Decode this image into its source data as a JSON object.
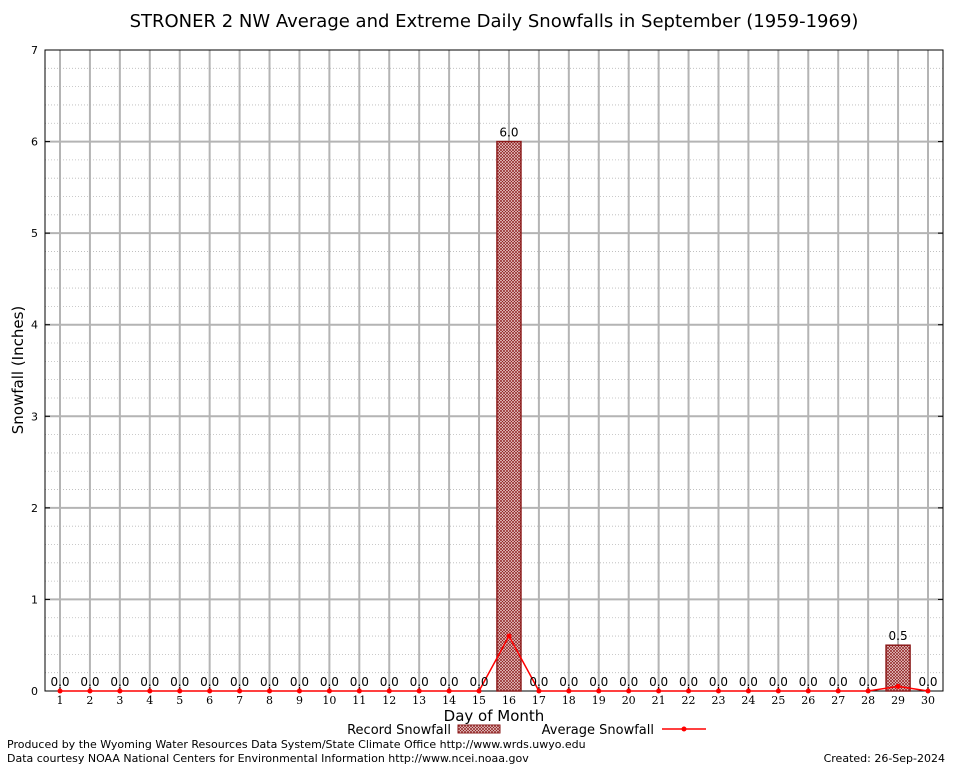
{
  "chart_data": {
    "type": "bar",
    "title": "STRONER 2 NW Average and Extreme Daily Snowfalls in September (1959-1969)",
    "xlabel": "Day of Month",
    "ylabel": "Snowfall (Inches)",
    "ylim": [
      0,
      7
    ],
    "yticks": [
      "0",
      "1",
      "2",
      "3",
      "4",
      "5",
      "6",
      "7"
    ],
    "categories": [
      "1",
      "2",
      "3",
      "4",
      "5",
      "6",
      "7",
      "8",
      "9",
      "10",
      "11",
      "12",
      "13",
      "14",
      "15",
      "16",
      "17",
      "18",
      "19",
      "20",
      "21",
      "22",
      "23",
      "24",
      "25",
      "26",
      "27",
      "28",
      "29",
      "30"
    ],
    "series": [
      {
        "name": "Record Snowfall",
        "kind": "bar",
        "color": "#b22222",
        "values": [
          0,
          0,
          0,
          0,
          0,
          0,
          0,
          0,
          0,
          0,
          0,
          0,
          0,
          0,
          0,
          6.0,
          0,
          0,
          0,
          0,
          0,
          0,
          0,
          0,
          0,
          0,
          0,
          0,
          0.5,
          0
        ],
        "labels": [
          "0.0",
          "0.0",
          "0.0",
          "0.0",
          "0.0",
          "0.0",
          "0.0",
          "0.0",
          "0.0",
          "0.0",
          "0.0",
          "0.0",
          "0.0",
          "0.0",
          "0.0",
          "6.0",
          "0.0",
          "0.0",
          "0.0",
          "0.0",
          "0.0",
          "0.0",
          "0.0",
          "0.0",
          "0.0",
          "0.0",
          "0.0",
          "0.0",
          "0.5",
          "0.0"
        ]
      },
      {
        "name": "Average Snowfall",
        "kind": "line",
        "color": "#ff0000",
        "values": [
          0,
          0,
          0,
          0,
          0,
          0,
          0,
          0,
          0,
          0,
          0,
          0,
          0,
          0,
          0,
          0.6,
          0,
          0,
          0,
          0,
          0,
          0,
          0,
          0,
          0,
          0,
          0,
          0,
          0.05,
          0
        ]
      }
    ],
    "grid": true,
    "legend_position": "bottom-center"
  },
  "footer": {
    "produced_by": "Produced by the Wyoming Water Resources Data System/State Climate Office http://www.wrds.uwyo.edu",
    "courtesy": "Data courtesy NOAA National Centers for Environmental Information http://www.ncei.noaa.gov",
    "created": "Created: 26-Sep-2024"
  }
}
